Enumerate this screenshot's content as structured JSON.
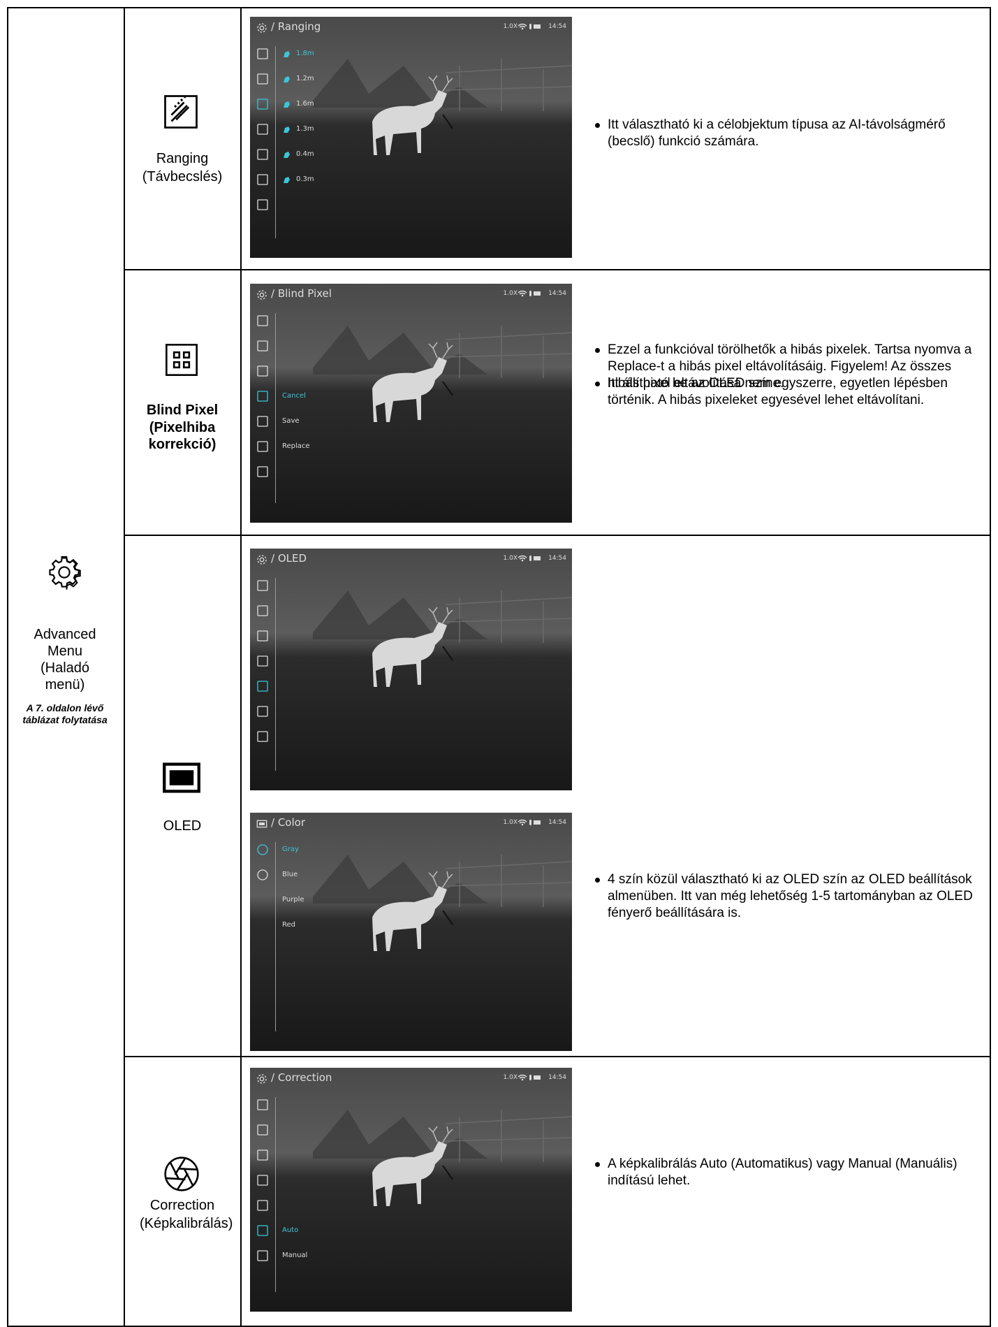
{
  "group": {
    "title": "Advanced Menu (Haladó menü)",
    "note": "A 7. oldalon lévő táblázat folytatása"
  },
  "rows": [
    {
      "name": "Ranging",
      "subtitle": "(Távbecslés)",
      "screens": [
        {
          "title": "/ Ranging",
          "zoom": "1.0X",
          "time": "14:54",
          "items": [
            "1.8m",
            "1.2m",
            "1.6m",
            "1.3m",
            "0.4m",
            "0.3m"
          ],
          "selected": 0,
          "description": "Itt választható ki a célobjektum típusa az AI-távolságmérő (becslő) funkció számára."
        }
      ]
    },
    {
      "name": "Blind Pixel",
      "subtitle": "(Pixelhiba korrekció)",
      "screens": [
        {
          "title": "/ Blind Pixel",
          "zoom": "1.0X",
          "time": "14:54",
          "items": [
            "Cancel",
            "Save",
            "Replace"
          ],
          "selected": 0,
          "description": "Ezzel a funkcióval törölhetők a hibás pixelek. Tartsa nyomva a Replace-t a hibás pixel eltávolításáig. Figyelem! Az összes hibás pixel eltávolítása nem egyszerre, egyetlen lépésben történik. A hibás pixeleket egyesével lehet eltávolítani."
        }
      ]
    },
    {
      "name": "OLED",
      "screens": [
        {
          "title": "/ OLED",
          "zoom": "1.0X",
          "time": "14:54",
          "items": [],
          "description": "Itt állítható be az OLED színe."
        },
        {
          "title": "/ Color",
          "zoom": "1.0X",
          "time": "14:54",
          "items": [
            "Gray",
            "Blue",
            "Purple",
            "Red"
          ],
          "selected": 0,
          "description": "4 szín közül választható ki az OLED szín az OLED beállítások almenüben. Itt van még lehetőség 1-5 tartományban az OLED fényerő beállítására is."
        }
      ]
    },
    {
      "name": "Correction",
      "subtitle": "(Képkalibrálás)",
      "screens": [
        {
          "title": "/ Correction",
          "zoom": "1.0X",
          "time": "14:54",
          "items": [
            "Auto",
            "Manual"
          ],
          "selected": 0,
          "description": "A képkalibrálás Auto (Automatikus) vagy Manual (Manuális) indítású lehet."
        }
      ]
    }
  ]
}
